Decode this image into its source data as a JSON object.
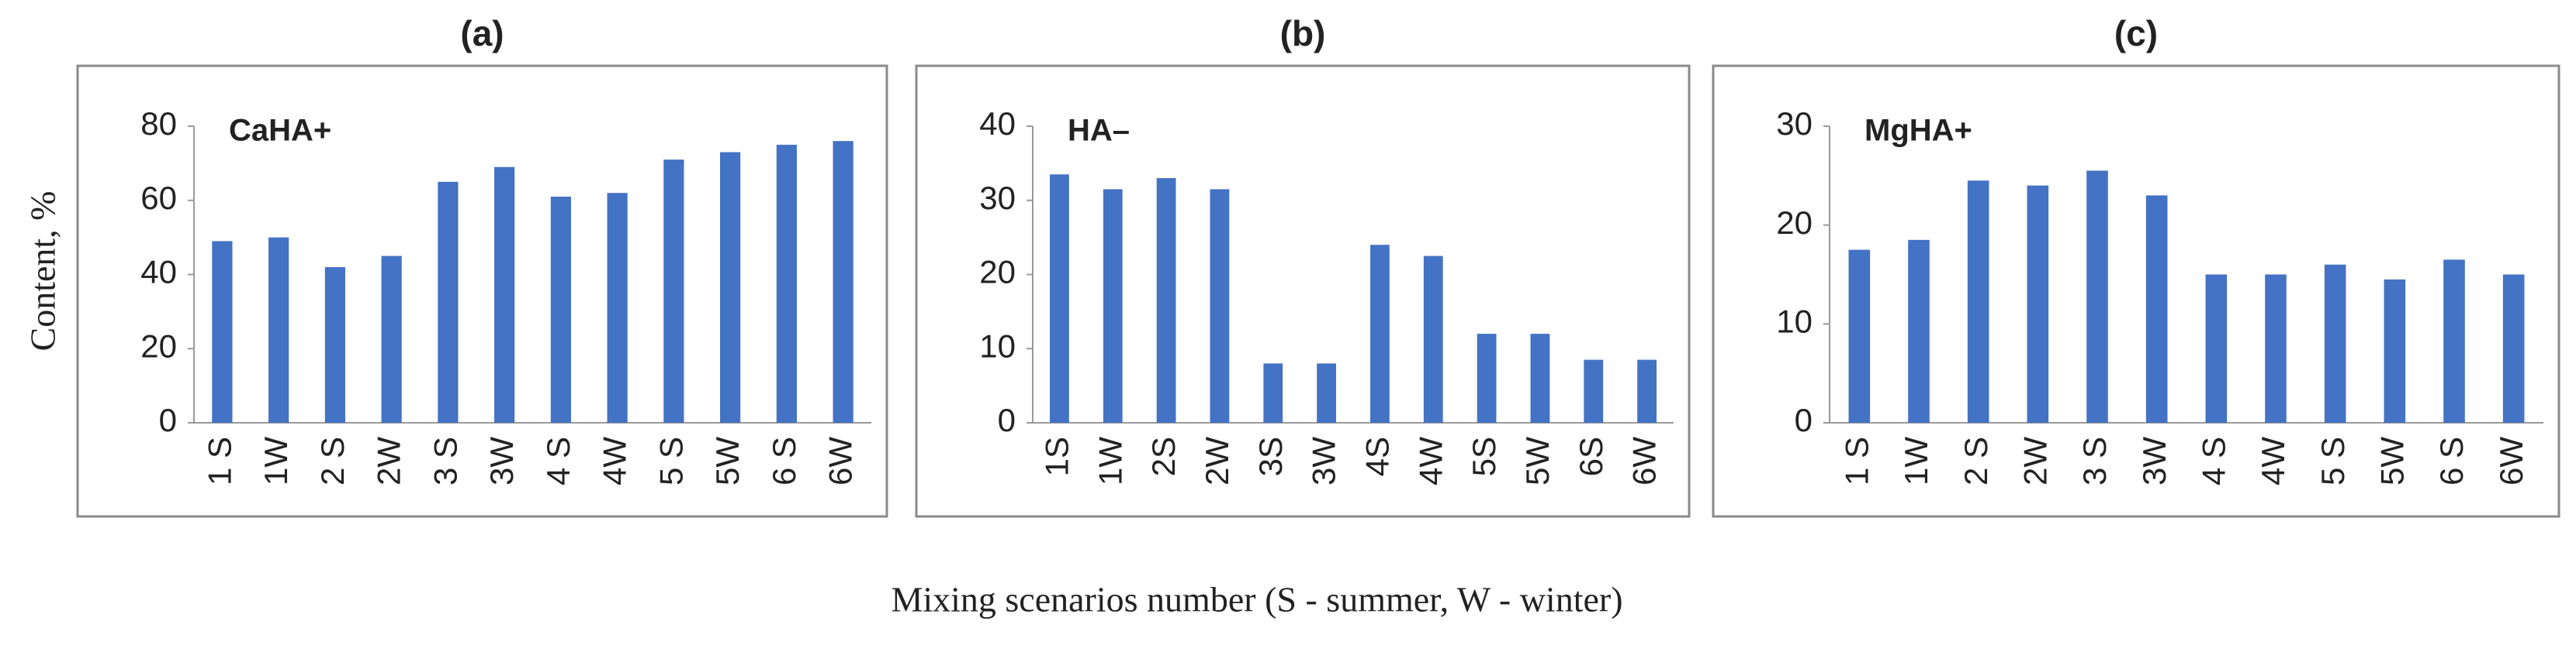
{
  "ylabel": "Content, %",
  "xlabel": "Mixing scenarios number (S - summer, W - winter)",
  "chart_data": [
    {
      "type": "bar",
      "title": "(a)",
      "annotation": "CaHA+",
      "color": "#4472c4",
      "categories": [
        "1 S",
        "1W",
        "2 S",
        "2W",
        "3 S",
        "3W",
        "4 S",
        "4W",
        "5 S",
        "5W",
        "6 S",
        "6W"
      ],
      "values": [
        49,
        50,
        42,
        45,
        65,
        69,
        61,
        62,
        71,
        73,
        75,
        76
      ],
      "ylim": [
        0,
        80
      ],
      "yticks": [
        0,
        20,
        40,
        60,
        80
      ]
    },
    {
      "type": "bar",
      "title": "(b)",
      "annotation": "HA–",
      "color": "#4472c4",
      "categories": [
        "1S",
        "1W",
        "2S",
        "2W",
        "3S",
        "3W",
        "4S",
        "4W",
        "5S",
        "5W",
        "6S",
        "6W"
      ],
      "values": [
        33.5,
        31.5,
        33,
        31.5,
        8,
        8,
        24,
        22.5,
        12,
        12,
        8.5,
        8.5
      ],
      "ylim": [
        0,
        40
      ],
      "yticks": [
        0,
        10,
        20,
        30,
        40
      ]
    },
    {
      "type": "bar",
      "title": "(c)",
      "annotation": "MgHA+",
      "color": "#4472c4",
      "categories": [
        "1 S",
        "1W",
        "2 S",
        "2W",
        "3 S",
        "3W",
        "4 S",
        "4W",
        "5 S",
        "5W",
        "6 S",
        "6W"
      ],
      "values": [
        17.5,
        18.5,
        24.5,
        24,
        25.5,
        23,
        15,
        15,
        16,
        14.5,
        16.5,
        15
      ],
      "ylim": [
        0,
        30
      ],
      "yticks": [
        0,
        10,
        20,
        30
      ]
    }
  ]
}
